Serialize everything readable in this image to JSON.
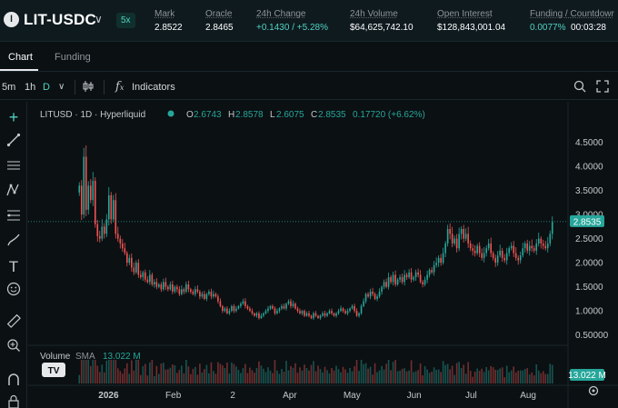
{
  "header": {
    "logo_text": "l",
    "pair": "LIT-USDC",
    "leverage": "5x",
    "stats": [
      {
        "label": "Mark",
        "value": "2.8522"
      },
      {
        "label": "Oracle",
        "value": "2.8465"
      },
      {
        "label": "24h Change",
        "value": "+0.1430 / +5.28%"
      },
      {
        "label": "24h Volume",
        "value": "$64,625,742.10"
      },
      {
        "label": "Open Interest",
        "value": "$128,843,001.04"
      },
      {
        "label": "Funding / Countdowr",
        "value_funding": "0.0077%",
        "value_countdown": "00:03:28"
      }
    ]
  },
  "tabs": [
    {
      "label": "Chart"
    },
    {
      "label": "Funding"
    }
  ],
  "toolbar": {
    "intervals": [
      "5m",
      "1h",
      "D"
    ],
    "active_interval": "D",
    "indicators_label": "Indicators"
  },
  "legend": {
    "symbol": "LITUSD · 1D · Hyperliquid",
    "o_label": "O",
    "o": "2.6743",
    "h_label": "H",
    "h": "2.8578",
    "l_label": "L",
    "l": "2.6075",
    "c_label": "C",
    "c": "2.8535",
    "change": "0.17720 (+6.62%)",
    "volume_label": "Volume",
    "sma_label": "SMA",
    "volume_value": "13.022 M"
  },
  "price_axis": {
    "ticks": [
      "4.5000",
      "4.0000",
      "3.5000",
      "3.0000",
      "2.5000",
      "2.0000",
      "1.5000",
      "1.0000",
      "0.50000"
    ],
    "tick_values": [
      4.5,
      4.0,
      3.5,
      3.0,
      2.5,
      2.0,
      1.5,
      1.0,
      0.5
    ],
    "current_price": "2.8535",
    "volume_badge": "13.022 M"
  },
  "time_axis": {
    "labels": [
      "2026",
      "Feb",
      "2",
      "Apr",
      "May",
      "Jun",
      "Jul",
      "Aug"
    ]
  },
  "colors": {
    "up": "#26a69a",
    "down": "#ef5350",
    "accent": "#50d2c1",
    "background": "#0b1013"
  },
  "chart_data": {
    "type": "candlestick",
    "ylim": [
      0.4,
      4.85
    ],
    "closes": [
      3.6,
      3.0,
      4.2,
      3.1,
      3.6,
      3.3,
      3.7,
      2.8,
      2.55,
      2.5,
      2.75,
      2.6,
      2.9,
      3.4,
      2.9,
      3.3,
      2.6,
      2.5,
      2.4,
      2.3,
      2.2,
      2.0,
      2.1,
      1.9,
      1.8,
      2.0,
      1.75,
      1.7,
      1.8,
      1.65,
      1.6,
      1.75,
      1.55,
      1.6,
      1.5,
      1.55,
      1.45,
      1.6,
      1.5,
      1.45,
      1.55,
      1.4,
      1.5,
      1.45,
      1.35,
      1.45,
      1.4,
      1.55,
      1.45,
      1.4,
      1.35,
      1.45,
      1.4,
      1.3,
      1.35,
      1.25,
      1.35,
      1.4,
      1.3,
      1.35,
      1.3,
      1.2,
      1.1,
      1.0,
      1.05,
      0.95,
      1.0,
      1.1,
      1.0,
      1.05,
      1.1,
      1.15,
      1.2,
      1.1,
      1.05,
      1.0,
      0.95,
      0.9,
      0.95,
      0.85,
      0.9,
      0.95,
      1.0,
      1.05,
      1.1,
      1.05,
      0.95,
      1.0,
      1.05,
      1.1,
      1.05,
      1.15,
      1.2,
      1.1,
      1.15,
      1.05,
      1.0,
      0.95,
      1.0,
      0.9,
      0.95,
      0.9,
      0.85,
      0.95,
      0.9,
      0.85,
      0.9,
      0.95,
      0.9,
      0.95,
      1.0,
      0.95,
      0.9,
      0.95,
      1.0,
      1.05,
      1.0,
      0.95,
      1.0,
      1.05,
      1.1,
      1.0,
      0.9,
      0.95,
      1.1,
      1.2,
      1.35,
      1.3,
      1.4,
      1.35,
      1.25,
      1.3,
      1.4,
      1.5,
      1.6,
      1.5,
      1.7,
      1.6,
      1.75,
      1.55,
      1.65,
      1.7,
      1.6,
      1.75,
      1.7,
      1.8,
      1.65,
      1.7,
      1.8,
      1.75,
      1.6,
      1.55,
      1.65,
      1.75,
      1.85,
      1.8,
      1.95,
      2.0,
      2.1,
      2.0,
      2.2,
      2.4,
      2.7,
      2.6,
      2.4,
      2.5,
      2.3,
      2.6,
      2.7,
      2.5,
      2.6,
      2.4,
      2.3,
      2.25,
      2.2,
      2.35,
      2.2,
      2.1,
      2.2,
      2.3,
      2.4,
      2.2,
      2.1,
      2.0,
      2.15,
      2.25,
      2.1,
      2.05,
      2.2,
      2.3,
      2.35,
      2.2,
      2.1,
      2.05,
      2.15,
      2.3,
      2.4,
      2.25,
      2.35,
      2.3,
      2.25,
      2.4,
      2.5,
      2.4,
      2.35,
      2.3,
      2.4,
      2.6,
      2.8535
    ],
    "volume_label": "Volume SMA 13.022 M"
  }
}
